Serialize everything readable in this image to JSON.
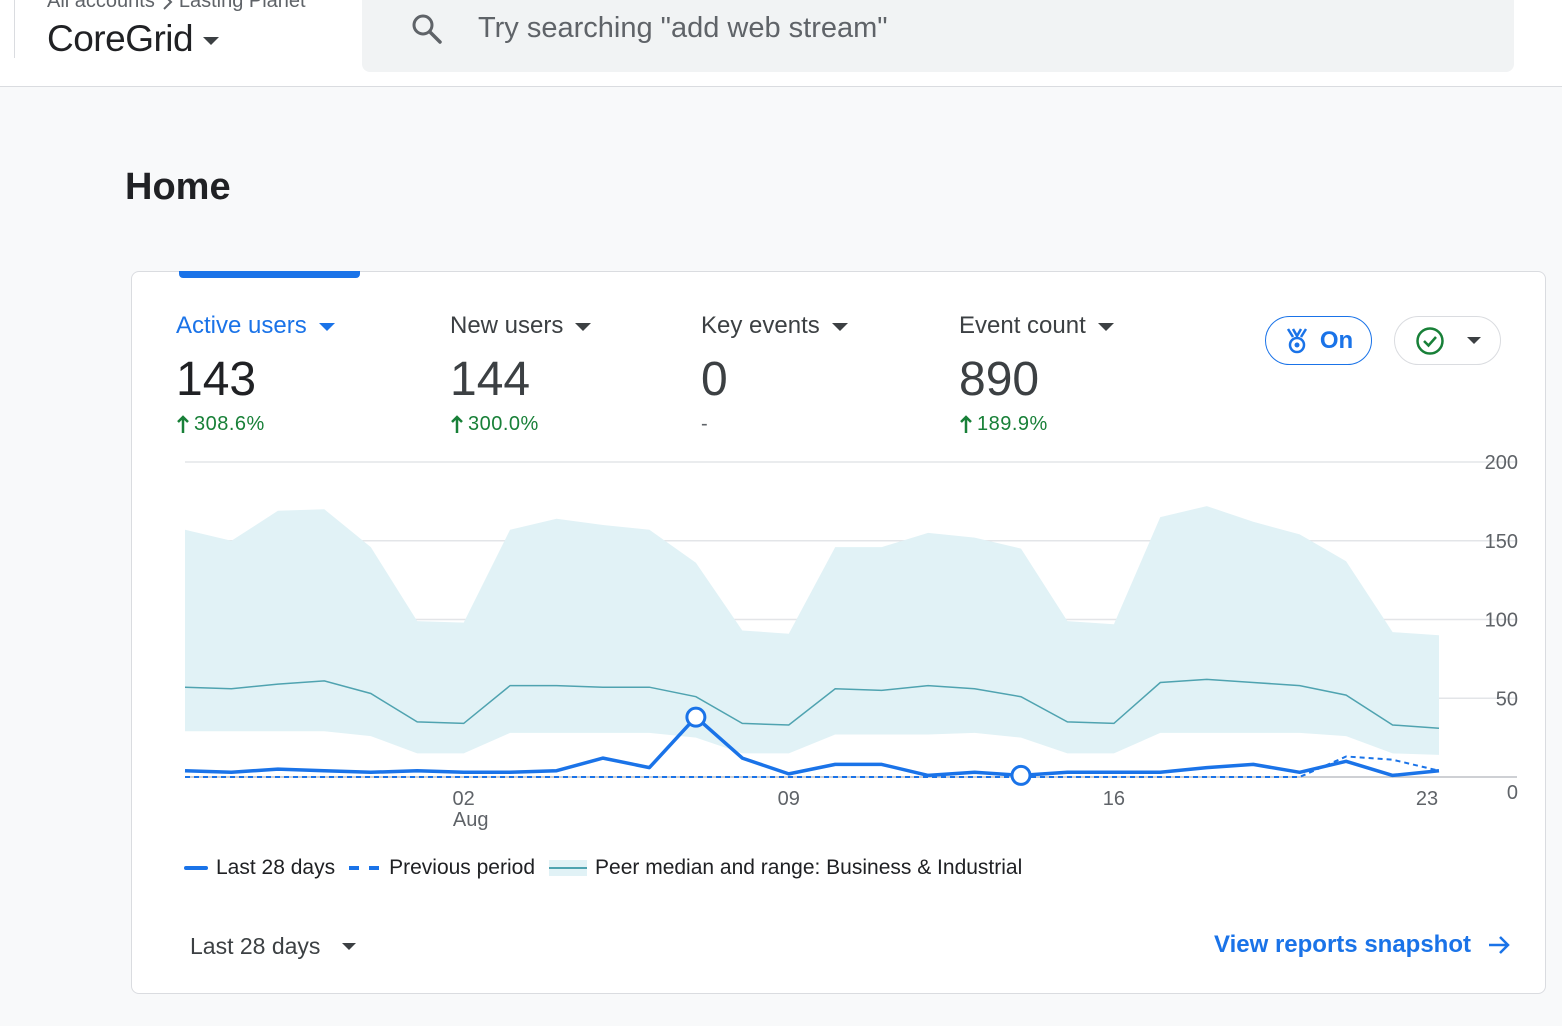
{
  "header": {
    "breadcrumb_root": "All accounts",
    "breadcrumb_account": "Lasting Planet",
    "property_name": "CoreGrid",
    "search_placeholder": "Try searching \"add web stream\""
  },
  "page": {
    "title": "Home"
  },
  "metrics": [
    {
      "label": "Active users",
      "value": "143",
      "change": "308.6%",
      "trend": "up"
    },
    {
      "label": "New users",
      "value": "144",
      "change": "300.0%",
      "trend": "up"
    },
    {
      "label": "Key events",
      "value": "0",
      "change": "-",
      "trend": "none"
    },
    {
      "label": "Event count",
      "value": "890",
      "change": "189.9%",
      "trend": "up"
    }
  ],
  "benchmark_toggle": {
    "label": "On",
    "icon": "medal-icon"
  },
  "status_menu": {
    "icon": "check-circle-icon"
  },
  "chart_data": {
    "type": "line",
    "x_tick_labels": [
      {
        "index": 6,
        "label": "02",
        "sub": "Aug"
      },
      {
        "index": 13,
        "label": "09"
      },
      {
        "index": 20,
        "label": "16"
      },
      {
        "index": 27,
        "label": "23"
      }
    ],
    "ylim": [
      0,
      200
    ],
    "yticks": [
      "200",
      "150",
      "100",
      "50",
      "0"
    ],
    "grid": true,
    "series": [
      {
        "name": "Last 28 days",
        "style": "solid",
        "color": "#1a73e8",
        "values": [
          4,
          3,
          5,
          4,
          3,
          4,
          3,
          3,
          4,
          12,
          6,
          38,
          12,
          2,
          8,
          8,
          1,
          3,
          1,
          3,
          3,
          3,
          6,
          8,
          3,
          10,
          1,
          4
        ],
        "markers": [
          11,
          18
        ]
      },
      {
        "name": "Previous period",
        "style": "dashed",
        "color": "#1a73e8",
        "values": [
          0,
          0,
          0,
          0,
          0,
          0,
          0,
          0,
          0,
          0,
          0,
          0,
          0,
          0,
          0,
          0,
          0,
          0,
          0,
          0,
          0,
          0,
          0,
          0,
          0,
          13,
          11,
          4
        ]
      },
      {
        "name": "Peer median and range: Business & Industrial",
        "style": "band",
        "color": "#4fa3b0",
        "median": [
          57,
          56,
          59,
          61,
          53,
          35,
          34,
          58,
          58,
          57,
          57,
          51,
          34,
          33,
          56,
          55,
          58,
          56,
          51,
          35,
          34,
          60,
          62,
          60,
          58,
          52,
          33,
          31
        ],
        "upper": [
          157,
          150,
          169,
          170,
          146,
          99,
          98,
          157,
          164,
          160,
          157,
          136,
          93,
          91,
          146,
          146,
          155,
          152,
          145,
          99,
          97,
          165,
          172,
          162,
          154,
          137,
          92,
          90
        ],
        "lower": [
          29,
          29,
          29,
          29,
          26,
          15,
          15,
          28,
          28,
          28,
          28,
          25,
          15,
          15,
          27,
          27,
          27,
          28,
          25,
          15,
          15,
          28,
          28,
          28,
          28,
          26,
          15,
          14
        ]
      }
    ]
  },
  "footer": {
    "date_range": "Last 28 days",
    "snapshot_link": "View reports snapshot"
  }
}
